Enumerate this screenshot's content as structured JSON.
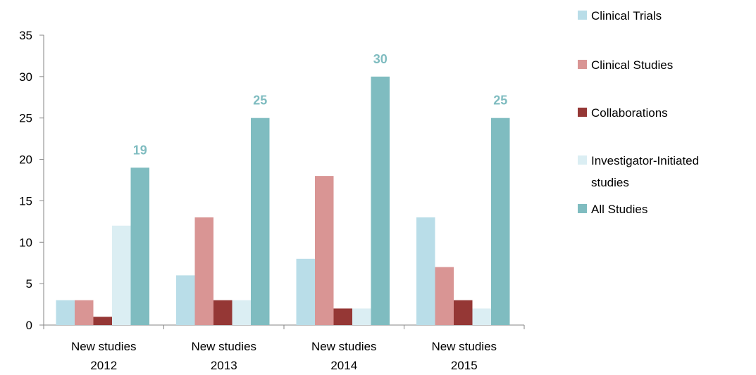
{
  "chart_data": {
    "type": "bar",
    "title": "",
    "xlabel": "",
    "ylabel": "",
    "ylim": [
      0,
      35
    ],
    "yticks": [
      0,
      5,
      10,
      15,
      20,
      25,
      30,
      35
    ],
    "grid": false,
    "legend_position": "right",
    "categories": [
      [
        "New studies",
        "2012"
      ],
      [
        "New studies",
        "2013"
      ],
      [
        "New studies",
        "2014"
      ],
      [
        "New studies",
        "2015"
      ]
    ],
    "series": [
      {
        "name": "Clinical Trials",
        "color": "#b9dde8",
        "values": [
          3,
          6,
          8,
          13
        ]
      },
      {
        "name": "Clinical Studies",
        "color": "#d99594",
        "values": [
          3,
          13,
          18,
          7
        ]
      },
      {
        "name": "Collaborations",
        "color": "#953735",
        "values": [
          1,
          3,
          2,
          3
        ]
      },
      {
        "name": "Investigator-Initiated studies",
        "legend_lines": [
          "Investigator-Initiated",
          "studies"
        ],
        "color": "#dbeef3",
        "values": [
          12,
          3,
          2,
          2
        ]
      },
      {
        "name": "All Studies",
        "color": "#7fbcc0",
        "values": [
          19,
          25,
          30,
          25
        ]
      }
    ],
    "data_labels": {
      "series": "All Studies",
      "color": "#7fbcc0",
      "values": [
        "19",
        "25",
        "30",
        "25"
      ]
    }
  }
}
